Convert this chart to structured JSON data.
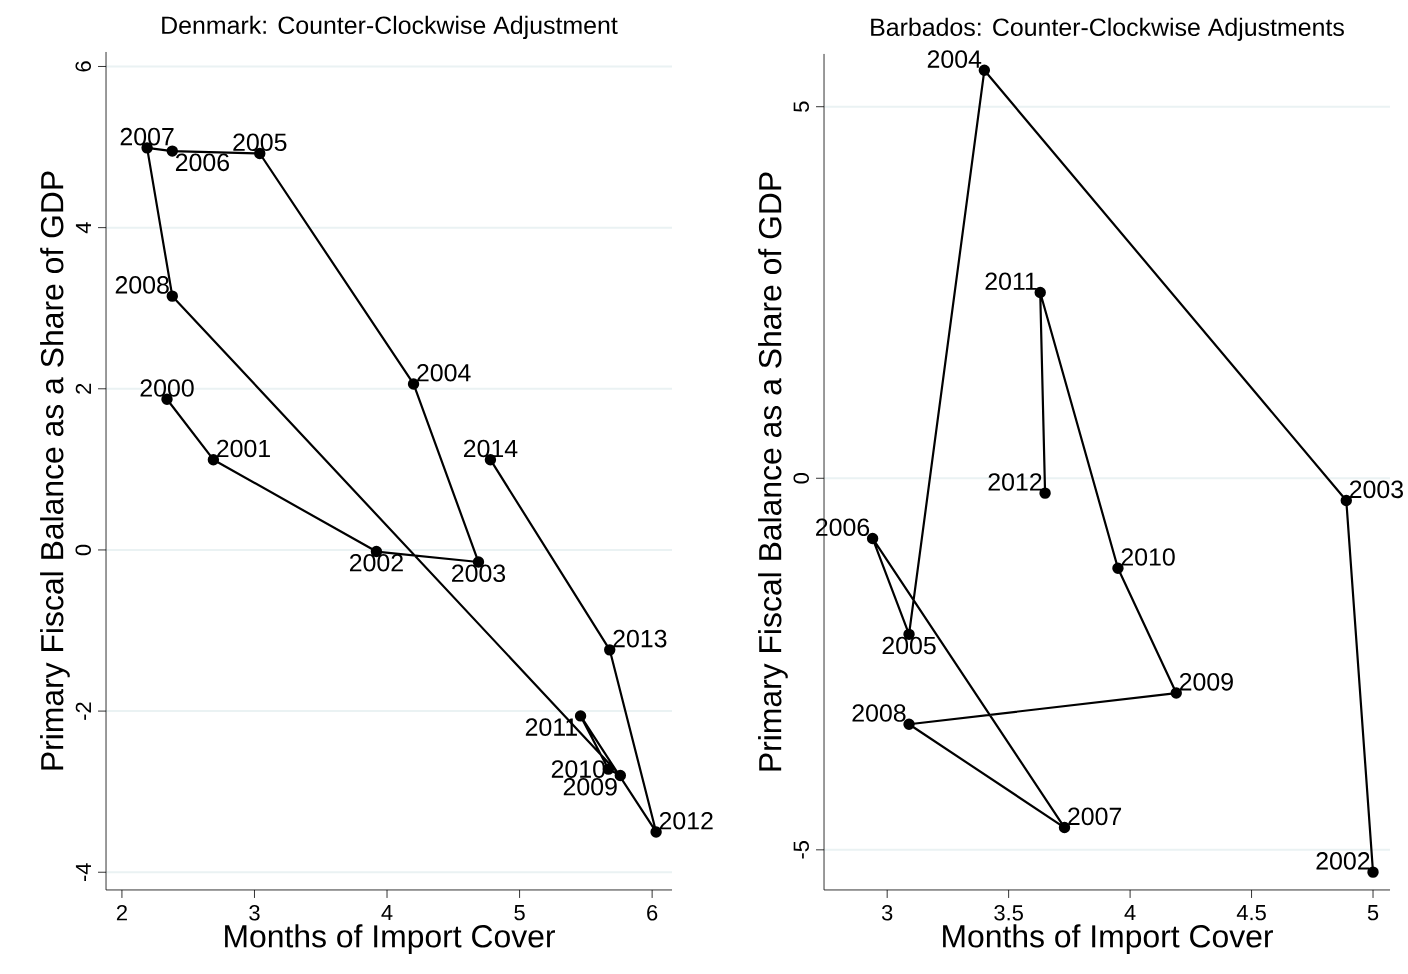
{
  "chart_data": [
    {
      "type": "line",
      "title": "Denmark: Counter-Clockwise Adjustment",
      "xlabel": "Months of Import Cover",
      "ylabel": "Primary Fiscal Balance as a Share of GDP",
      "marker": "circle",
      "line_style": "solid",
      "grid": "y",
      "xlim": [
        1.88,
        6.15
      ],
      "ylim": [
        -4.22,
        6.18
      ],
      "xticks": [
        2,
        3,
        4,
        5,
        6
      ],
      "yticks": [
        -4,
        -2,
        0,
        2,
        4,
        6
      ],
      "series": [
        {
          "color": "#000000",
          "x": [
            2.34,
            2.69,
            3.92,
            4.69,
            4.2,
            3.04,
            2.38,
            2.19,
            2.38,
            5.76,
            5.67,
            5.46,
            6.03,
            5.68,
            4.78
          ],
          "values": [
            1.87,
            1.12,
            -0.02,
            -0.15,
            2.06,
            4.92,
            4.95,
            4.99,
            3.15,
            -2.8,
            -2.72,
            -2.06,
            -3.5,
            -1.24,
            1.12
          ]
        }
      ],
      "annotations": [
        {
          "text": "2000",
          "x": 2.34,
          "y": 1.87
        },
        {
          "text": "2001",
          "x": 2.69,
          "y": 1.12
        },
        {
          "text": "2002",
          "x": 3.92,
          "y": -0.02
        },
        {
          "text": "2003",
          "x": 4.69,
          "y": -0.15
        },
        {
          "text": "2004",
          "x": 4.2,
          "y": 2.06
        },
        {
          "text": "2005",
          "x": 3.04,
          "y": 4.92
        },
        {
          "text": "2006",
          "x": 2.38,
          "y": 4.95
        },
        {
          "text": "2007",
          "x": 2.19,
          "y": 4.99
        },
        {
          "text": "2008",
          "x": 2.38,
          "y": 3.15
        },
        {
          "text": "2009",
          "x": 5.76,
          "y": -2.8
        },
        {
          "text": "2010",
          "x": 5.67,
          "y": -2.72
        },
        {
          "text": "2011",
          "x": 5.46,
          "y": -2.06
        },
        {
          "text": "2012",
          "x": 6.03,
          "y": -3.5
        },
        {
          "text": "2013",
          "x": 5.68,
          "y": -1.24
        },
        {
          "text": "2014",
          "x": 4.78,
          "y": 1.12
        }
      ]
    },
    {
      "type": "line",
      "title": "Barbados: Counter-Clockwise Adjustments",
      "xlabel": "Months of Import Cover",
      "ylabel": "Primary Fiscal Balance as a Share of GDP",
      "marker": "circle",
      "line_style": "solid",
      "grid": "y",
      "xlim": [
        2.74,
        5.07
      ],
      "ylim": [
        -5.54,
        5.71
      ],
      "xticks": [
        3,
        3.5,
        4,
        4.5,
        5
      ],
      "yticks": [
        -5,
        0,
        5
      ],
      "series": [
        {
          "color": "#000000",
          "x": [
            5.0,
            4.89,
            3.4,
            3.09,
            2.94,
            3.73,
            3.09,
            4.19,
            3.95,
            3.63,
            3.65
          ],
          "values": [
            -5.3,
            -0.3,
            5.49,
            -2.1,
            -0.81,
            -4.7,
            -3.31,
            -2.89,
            -1.21,
            2.5,
            -0.2
          ]
        }
      ],
      "annotations": [
        {
          "text": "2002",
          "x": 5.0,
          "y": -5.3
        },
        {
          "text": "2003",
          "x": 4.89,
          "y": -0.3
        },
        {
          "text": "2004",
          "x": 3.4,
          "y": 5.49
        },
        {
          "text": "2005",
          "x": 3.09,
          "y": -2.1
        },
        {
          "text": "2006",
          "x": 2.94,
          "y": -0.81
        },
        {
          "text": "2007",
          "x": 3.73,
          "y": -4.7
        },
        {
          "text": "2008",
          "x": 3.09,
          "y": -3.31
        },
        {
          "text": "2009",
          "x": 4.19,
          "y": -2.89
        },
        {
          "text": "2010",
          "x": 3.95,
          "y": -1.21
        },
        {
          "text": "2011",
          "x": 3.63,
          "y": 2.5
        },
        {
          "text": "2012",
          "x": 3.65,
          "y": -0.2
        }
      ]
    }
  ]
}
